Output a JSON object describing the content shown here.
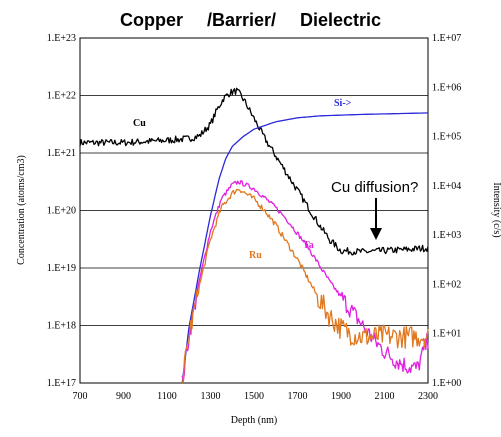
{
  "chart_data": {
    "type": "line",
    "title_parts": [
      "Copper",
      "/Barrier/",
      "Dielectric"
    ],
    "xlabel": "Depth (nm)",
    "ylabel_left": "Concentration (atoms/cm3)",
    "ylabel_right": "Intensity (c/s)",
    "xlim": [
      700,
      2300
    ],
    "x_ticks": [
      "700",
      "900",
      "1100",
      "1300",
      "1500",
      "1700",
      "1900",
      "2100",
      "2300"
    ],
    "y_left_log_range": [
      17,
      23
    ],
    "y_left_ticks": [
      "1.E+17",
      "1.E+18",
      "1.E+19",
      "1.E+20",
      "1.E+21",
      "1.E+22",
      "1.E+23"
    ],
    "y_right_log_range": [
      0,
      7
    ],
    "y_right_ticks": [
      "1.E+00",
      "1.E+01",
      "1.E+02",
      "1.E+03",
      "1.E+04",
      "1.E+05",
      "1.E+06",
      "1.E+07"
    ],
    "grid": "horizontal",
    "series": [
      {
        "name": "Cu",
        "axis": "left",
        "color": "#000000",
        "noise": 0.06,
        "x": [
          700,
          800,
          900,
          1000,
          1100,
          1200,
          1250,
          1300,
          1330,
          1360,
          1390,
          1420,
          1440,
          1460,
          1500,
          1550,
          1600,
          1650,
          1700,
          1750,
          1800,
          1850,
          1900,
          2000,
          2100,
          2200,
          2300
        ],
        "logy": [
          21.18,
          21.18,
          21.18,
          21.2,
          21.22,
          21.25,
          21.3,
          21.5,
          21.75,
          21.95,
          22.05,
          22.08,
          22.0,
          21.88,
          21.6,
          21.25,
          20.95,
          20.65,
          20.35,
          20.05,
          19.75,
          19.48,
          19.3,
          19.28,
          19.3,
          19.32,
          19.35
        ]
      },
      {
        "name": "Si->",
        "axis": "right",
        "color": "#2a2ad8",
        "noise": 0,
        "x": [
          1170,
          1200,
          1250,
          1300,
          1340,
          1370,
          1400,
          1450,
          1500,
          1600,
          1700,
          1800,
          2000,
          2200,
          2300
        ],
        "logy": [
          0.0,
          1.1,
          2.3,
          3.4,
          4.15,
          4.55,
          4.8,
          5.0,
          5.15,
          5.3,
          5.38,
          5.42,
          5.45,
          5.47,
          5.48
        ]
      },
      {
        "name": "Ta",
        "axis": "left",
        "color": "#e020e0",
        "noise": 0.04,
        "x": [
          1170,
          1200,
          1250,
          1300,
          1350,
          1400,
          1430,
          1460,
          1500,
          1550,
          1600,
          1650,
          1700,
          1750,
          1800,
          1850,
          1900,
          1950,
          2000,
          2050,
          2100,
          2150,
          2200,
          2250,
          2300
        ],
        "logy": [
          17.0,
          17.8,
          18.8,
          19.65,
          20.2,
          20.45,
          20.5,
          20.45,
          20.38,
          20.22,
          20.05,
          19.85,
          19.6,
          19.35,
          19.05,
          18.75,
          18.5,
          18.25,
          18.0,
          17.75,
          17.55,
          17.4,
          17.3,
          17.25,
          17.75
        ]
      },
      {
        "name": "Ru",
        "axis": "left",
        "color": "#e07820",
        "noise": 0.05,
        "x": [
          1170,
          1200,
          1250,
          1300,
          1350,
          1400,
          1430,
          1460,
          1500,
          1550,
          1600,
          1650,
          1700,
          1750,
          1800,
          1850,
          1900,
          1950,
          2000,
          2100,
          2200,
          2300
        ],
        "logy": [
          17.0,
          17.8,
          18.7,
          19.5,
          20.05,
          20.3,
          20.38,
          20.3,
          20.2,
          20.0,
          19.75,
          19.45,
          19.15,
          18.8,
          18.45,
          18.15,
          17.95,
          17.85,
          17.8,
          17.82,
          17.8,
          17.82
        ]
      }
    ],
    "series_labels": [
      "Cu",
      "Si->",
      "Ta",
      "Ru"
    ],
    "annotation": "Cu diffusion?"
  }
}
